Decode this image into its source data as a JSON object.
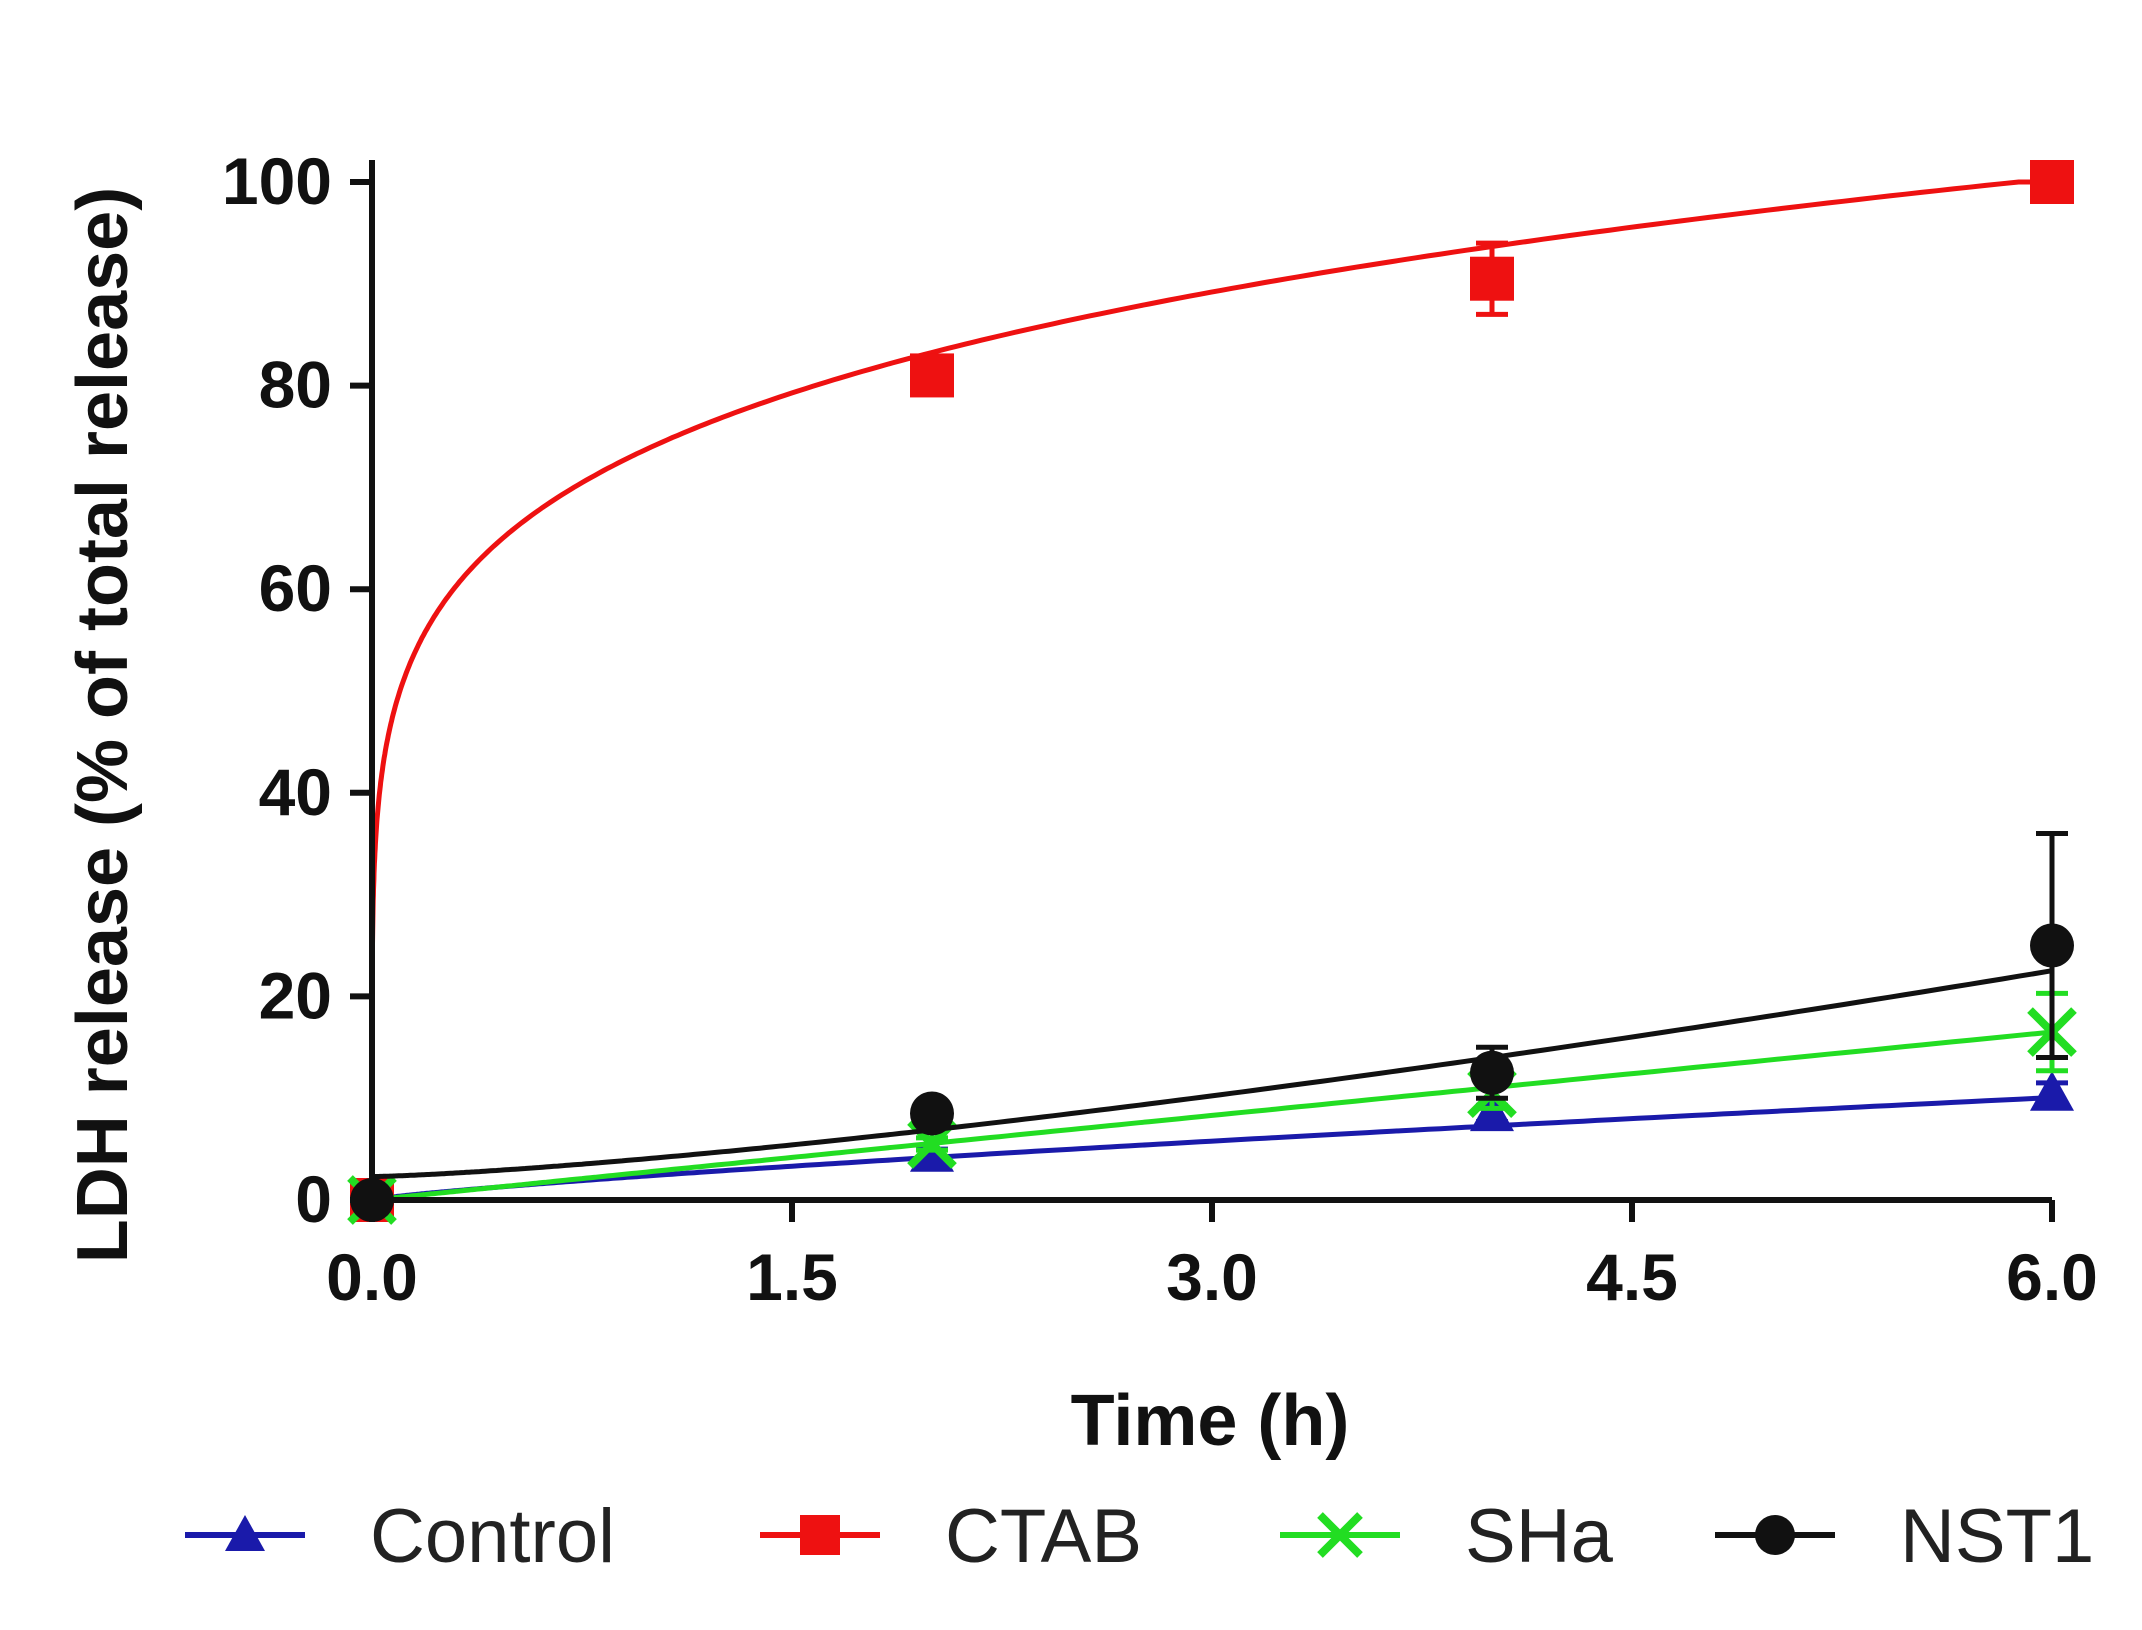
{
  "chart_data": {
    "type": "line",
    "title": "",
    "xlabel": "Time (h)",
    "ylabel": "LDH release (% of total release)",
    "xlim": [
      0,
      6
    ],
    "ylim": [
      0,
      100
    ],
    "xticks": [
      "0.0",
      "1.5",
      "3.0",
      "4.5",
      "6.0"
    ],
    "xtick_values": [
      0,
      1.5,
      3,
      4.5,
      6
    ],
    "yticks": [
      "0",
      "20",
      "40",
      "60",
      "80",
      "100"
    ],
    "ytick_values": [
      0,
      20,
      40,
      60,
      80,
      100
    ],
    "grid": false,
    "legend_position": "bottom",
    "series": [
      {
        "name": "Control",
        "color": "#1a1aaa",
        "marker": "triangle",
        "x": [
          0,
          2,
          4,
          6
        ],
        "y": [
          0,
          4.5,
          8.5,
          10.5
        ],
        "err": [
          0,
          0.5,
          0.8,
          1.0
        ],
        "fit": "power",
        "fit_params": {
          "a": 0,
          "b": 2.4,
          "p": 0.8
        }
      },
      {
        "name": "CTAB",
        "color": "#ee1111",
        "marker": "square",
        "x": [
          0,
          2,
          4,
          6
        ],
        "y": [
          0,
          81,
          90.5,
          100
        ],
        "err": [
          0,
          1.5,
          3.5,
          0.8
        ],
        "fit": "power",
        "fit_params": {
          "a": 0,
          "b": 74,
          "p": 0.17
        }
      },
      {
        "name": "SHa",
        "color": "#22dd22",
        "marker": "x",
        "x": [
          0,
          2,
          4,
          6
        ],
        "y": [
          0,
          5.5,
          10.5,
          16.5
        ],
        "err": [
          0,
          0.6,
          1.5,
          3.8
        ],
        "fit": "power",
        "fit_params": {
          "a": 0,
          "b": 2.8,
          "p": 0.99
        }
      },
      {
        "name": "NST1",
        "color": "#111111",
        "marker": "circle",
        "x": [
          0,
          2,
          4,
          6
        ],
        "y": [
          0,
          8.5,
          12.5,
          25
        ],
        "err": [
          0,
          0.8,
          2.5,
          11
        ],
        "fit": "power",
        "fit_params": {
          "a": 2.3,
          "b": 1.8,
          "p": 1.35
        }
      }
    ]
  }
}
